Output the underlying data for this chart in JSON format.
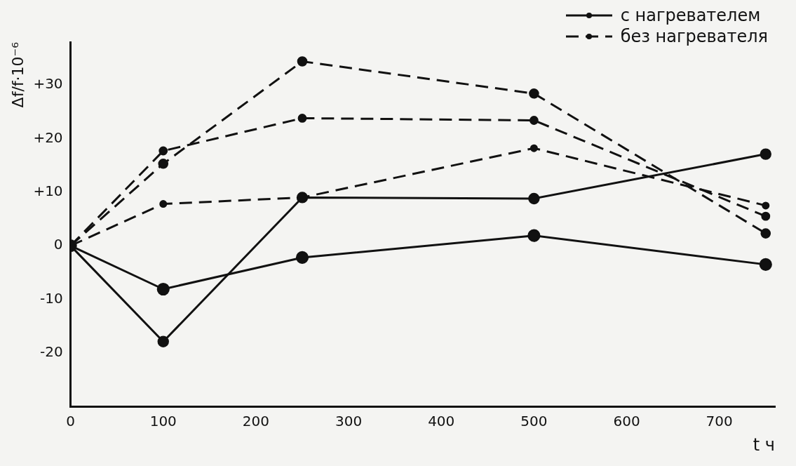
{
  "chart_data": {
    "type": "line",
    "xlabel": "t ч",
    "ylabel": "Δf/f·10⁻⁶",
    "x": [
      0,
      100,
      250,
      500,
      750
    ],
    "series": [
      {
        "name": "с нагревателем",
        "color": "#111111",
        "line_style": "solid",
        "values": [
          0,
          -8.1,
          -2.2,
          1.9,
          -3.5
        ]
      },
      {
        "color": "#111111",
        "line_style": "solid",
        "values": [
          0,
          -17.9,
          9,
          8.8,
          17.1
        ]
      },
      {
        "name": "без нагревателя",
        "color": "#111111",
        "line_style": "dashed",
        "values": [
          0,
          15.3,
          34.4,
          28.4,
          2.3
        ]
      },
      {
        "color": "#111111",
        "line_style": "dashed",
        "values": [
          0,
          17.7,
          23.8,
          23.4,
          5.5
        ]
      },
      {
        "color": "#111111",
        "line_style": "dashed",
        "values": [
          0,
          7.8,
          9,
          18.2,
          7.5
        ]
      }
    ],
    "xlim": [
      0,
      760
    ],
    "xticks": [
      0,
      100,
      200,
      300,
      400,
      500,
      600,
      700
    ],
    "ylim": [
      -30,
      38
    ],
    "yticks": [
      {
        "value": -20,
        "label": "-20"
      },
      {
        "value": -10,
        "label": "-10"
      },
      {
        "value": 0,
        "label": "0"
      },
      {
        "value": 10,
        "label": "+10"
      },
      {
        "value": 20,
        "label": "+20"
      },
      {
        "value": 30,
        "label": "+30"
      }
    ],
    "grid": false,
    "legend": "top right",
    "marker": "circle"
  }
}
